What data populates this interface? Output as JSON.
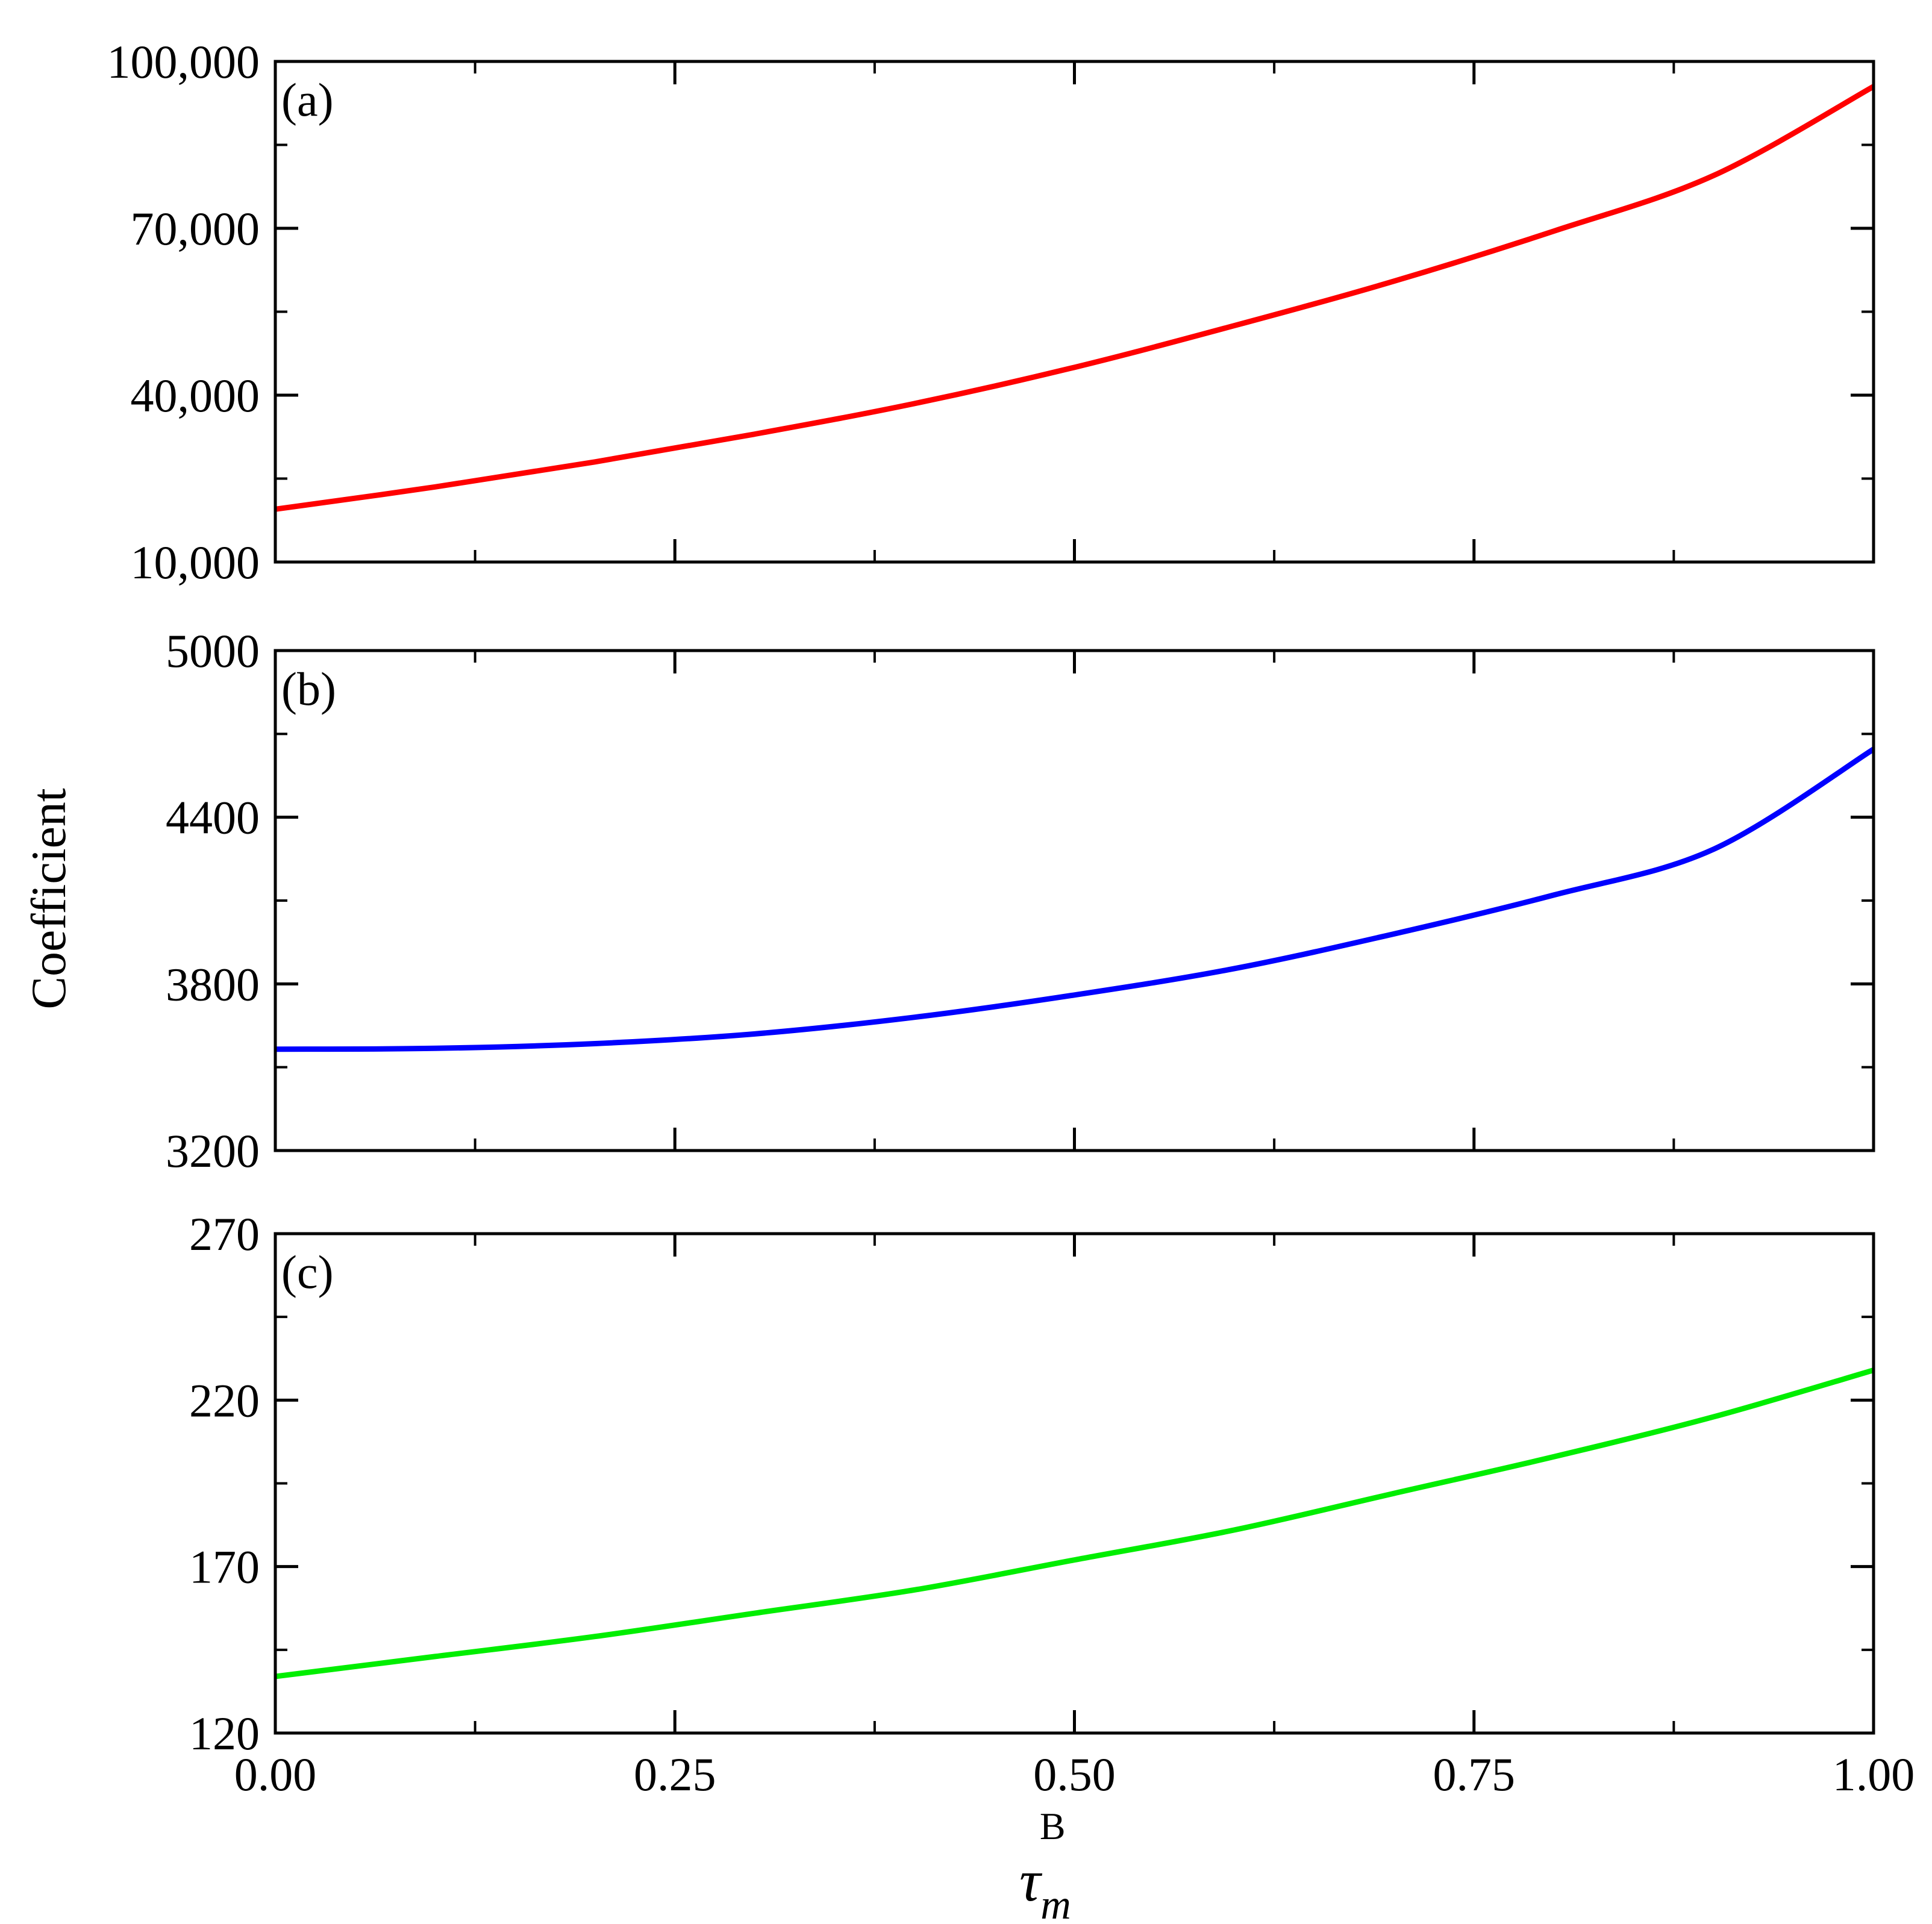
{
  "figure": {
    "ylabel": "Coefficient",
    "xlabel_main": "τ",
    "xlabel_sub": "m",
    "xlabel_sup": "B"
  },
  "chart_data": [
    {
      "type": "line",
      "panel_label": "(a)",
      "color": "#ff0000",
      "x": [
        0,
        0.1,
        0.2,
        0.3,
        0.4,
        0.5,
        0.6,
        0.7,
        0.8,
        0.9,
        1.0
      ],
      "y": [
        19500,
        23500,
        28000,
        33000,
        38500,
        45000,
        52500,
        60500,
        69500,
        79500,
        95500
      ],
      "xlim": [
        0,
        1
      ],
      "ylim": [
        10000,
        100000
      ],
      "yticks": [
        10000,
        40000,
        70000,
        100000
      ],
      "ytick_labels": [
        "10,000",
        "40,000",
        "70,000",
        "100,000"
      ],
      "yminor": [
        25000,
        55000,
        85000
      ]
    },
    {
      "type": "line",
      "panel_label": "(b)",
      "color": "#0000ff",
      "x": [
        0,
        0.1,
        0.2,
        0.3,
        0.4,
        0.5,
        0.6,
        0.7,
        0.8,
        0.9,
        1.0
      ],
      "y": [
        3565,
        3568,
        3585,
        3620,
        3680,
        3760,
        3855,
        3980,
        4120,
        4285,
        4645
      ],
      "xlim": [
        0,
        1
      ],
      "ylim": [
        3200,
        5000
      ],
      "yticks": [
        3200,
        3800,
        4400,
        5000
      ],
      "ytick_labels": [
        "3200",
        "3800",
        "4400",
        "5000"
      ],
      "yminor": [
        3500,
        4100,
        4700
      ]
    },
    {
      "type": "line",
      "panel_label": "(c)",
      "color": "#00ee00",
      "x": [
        0,
        0.1,
        0.2,
        0.3,
        0.4,
        0.5,
        0.6,
        0.7,
        0.8,
        0.9,
        1.0
      ],
      "y": [
        137,
        143,
        149,
        156,
        163,
        172,
        181,
        192,
        203,
        215,
        229
      ],
      "xlim": [
        0,
        1
      ],
      "ylim": [
        120,
        270
      ],
      "yticks": [
        120,
        170,
        220,
        270
      ],
      "ytick_labels": [
        "120",
        "170",
        "220",
        "270"
      ],
      "yminor": [
        145,
        195,
        245
      ],
      "xticks": [
        0,
        0.25,
        0.5,
        0.75,
        1.0
      ],
      "xtick_labels": [
        "0.00",
        "0.25",
        "0.50",
        "0.75",
        "1.00"
      ],
      "xminor": [
        0.125,
        0.375,
        0.625,
        0.875
      ]
    }
  ]
}
